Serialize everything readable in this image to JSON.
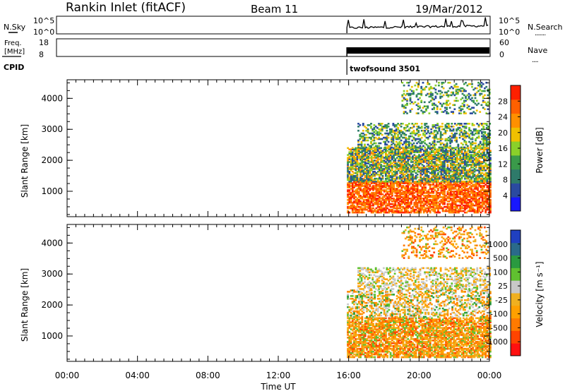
{
  "header": {
    "station": "Rankin Inlet (fitACF)",
    "beam": "Beam 11",
    "date": "19/Mar/2012"
  },
  "top_panels": {
    "nsky": {
      "label": "N.Sky",
      "ticks": [
        "10^5",
        "10^0"
      ]
    },
    "nsearch": {
      "label": "N.Search",
      "ticks": [
        "10^5",
        "10^0"
      ],
      "linestyle": "......."
    },
    "freq": {
      "label_line1": "Freq.",
      "label_line2": "[MHz]",
      "ticks": [
        "18",
        "8"
      ]
    },
    "nave": {
      "label": "Nave",
      "ticks": [
        "60",
        "0"
      ],
      "linestyle": "...."
    },
    "cpid": {
      "label": "CPID",
      "mode": "twofsound 3501",
      "mode_start_hour": 15.9
    }
  },
  "x_axis": {
    "label": "Time UT",
    "ticks": [
      "00:00",
      "04:00",
      "08:00",
      "12:00",
      "16:00",
      "20:00",
      "00:00"
    ],
    "range_hours": [
      0,
      24
    ]
  },
  "chart_data": [
    {
      "type": "heatmap",
      "name": "Power",
      "ylabel": "Slant Range [km]",
      "yticks": [
        "4000",
        "3000",
        "2000",
        "1000"
      ],
      "ylim": [
        180,
        4600
      ],
      "colorbar": {
        "label": "Power [dB]",
        "ticks": [
          "28",
          "24",
          "20",
          "16",
          "12",
          "8",
          "4"
        ],
        "range": [
          0,
          32
        ],
        "colors": [
          "#1818ff",
          "#2a4aa0",
          "#2e7a6a",
          "#3a9a4a",
          "#8ad02a",
          "#f0c000",
          "#ff9000",
          "#ff6000",
          "#ff2000"
        ]
      },
      "data_start_hour": 15.9,
      "regions": [
        {
          "hours": [
            15.9,
            24
          ],
          "range_km": [
            300,
            1300
          ],
          "level": "high"
        },
        {
          "hours": [
            15.9,
            24
          ],
          "range_km": [
            1300,
            2400
          ],
          "level": "medium"
        },
        {
          "hours": [
            16.5,
            24
          ],
          "range_km": [
            2400,
            3200
          ],
          "level": "low"
        },
        {
          "hours": [
            19.0,
            24
          ],
          "range_km": [
            3500,
            4500
          ],
          "level": "low"
        }
      ]
    },
    {
      "type": "heatmap",
      "name": "Velocity",
      "ylabel": "Slant Range [km]",
      "yticks": [
        "4000",
        "3000",
        "2000",
        "1000"
      ],
      "ylim": [
        180,
        4600
      ],
      "colorbar": {
        "label": "Velocity [m s⁻¹]",
        "ticks": [
          "1000",
          "500",
          "100",
          "25",
          "-25",
          "-100",
          "-500",
          "-1000"
        ],
        "range": [
          -1200,
          1200
        ],
        "colors": [
          "#ff1010",
          "#ff4400",
          "#ff7a00",
          "#ffa000",
          "#f0b020",
          "#c8c8c8",
          "#60c030",
          "#2a9a40",
          "#2a6a8a",
          "#2040c0"
        ]
      },
      "data_start_hour": 15.9,
      "regions": [
        {
          "hours": [
            15.9,
            24
          ],
          "range_km": [
            300,
            1600
          ],
          "level": "negative"
        },
        {
          "hours": [
            15.9,
            24
          ],
          "range_km": [
            1600,
            2500
          ],
          "level": "mixed"
        },
        {
          "hours": [
            16.5,
            24
          ],
          "range_km": [
            2500,
            3200
          ],
          "level": "near-zero"
        },
        {
          "hours": [
            19.0,
            24
          ],
          "range_km": [
            3500,
            4500
          ],
          "level": "negative"
        }
      ]
    }
  ]
}
